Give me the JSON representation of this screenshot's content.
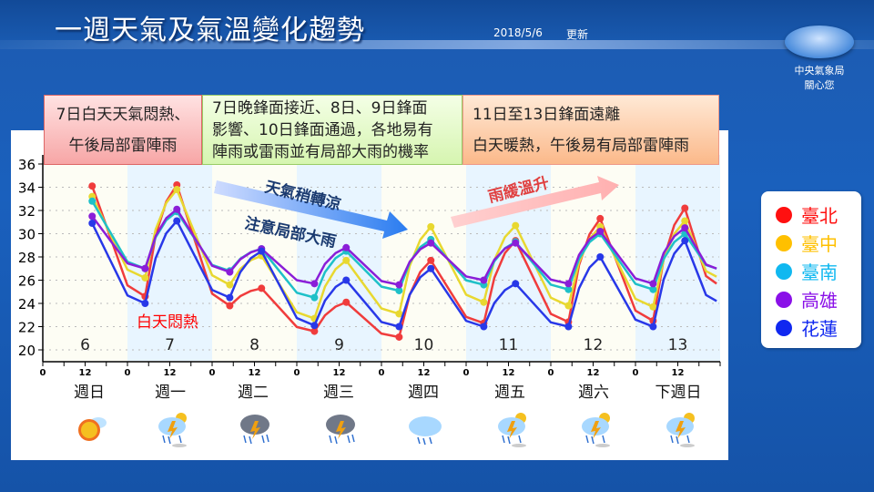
{
  "header": {
    "title": "一週天氣及氣溫變化趨勢",
    "date": "2018/5/6",
    "updated": "更新",
    "agency_line1": "中央氣象局",
    "agency_line2": "關心您"
  },
  "notes": [
    {
      "lines": [
        "7日白天天氣悶熱、",
        "午後局部雷陣雨"
      ]
    },
    {
      "lines": [
        "7日晚鋒面接近、8日、9日鋒面",
        "影響、10日鋒面通過，各地易有",
        "陣雨或雷雨並有局部大雨的機率"
      ]
    },
    {
      "lines": [
        "11日至13日鋒面遠離",
        "白天暖熱，午後易有局部雷陣雨"
      ]
    }
  ],
  "annotations": {
    "cool": "天氣稍轉涼",
    "heavy_rain": "注意局部大雨",
    "warm": "雨緩溫升",
    "hot": "白天悶熱"
  },
  "weekdays": [
    "週日",
    "週一",
    "週二",
    "週三",
    "週四",
    "週五",
    "週六",
    "下週日"
  ],
  "weather_icons": [
    "sunny-partly-cloudy",
    "thunderstorm-sun",
    "thunderstorm-dark",
    "thunderstorm-dark",
    "cloudy-rain",
    "thunderstorm-sun",
    "thunderstorm-sun",
    "thunderstorm-sun"
  ],
  "chart_data": {
    "type": "line",
    "ylabel": "",
    "xlabel": "",
    "ylim": [
      20,
      36
    ],
    "yticks": [
      20,
      22,
      24,
      26,
      28,
      30,
      32,
      34,
      36
    ],
    "xticks_hour_labels": [
      "0",
      "12",
      "0",
      "12",
      "0",
      "12",
      "0",
      "12",
      "0",
      "12",
      "0",
      "12",
      "0",
      "12",
      "0",
      "12"
    ],
    "day_labels": [
      "6",
      "7",
      "8",
      "9",
      "10",
      "11",
      "12",
      "13"
    ],
    "grid": "horizontal-dotted",
    "legend": "right",
    "x_hours": [
      14,
      29,
      38,
      53,
      62,
      77,
      86,
      101,
      110,
      125,
      134,
      149,
      158,
      173,
      182,
      191
    ],
    "series": [
      {
        "name": "臺北",
        "color": "#f03c3c",
        "values": [
          34.1,
          24.6,
          34.2,
          23.8,
          25.3,
          21.6,
          24.1,
          21.1,
          27.7,
          22.3,
          29.4,
          22.4,
          31.3,
          22.5,
          32.2,
          25.7
        ]
      },
      {
        "name": "臺中",
        "color": "#e8d830",
        "values": [
          33.2,
          26.2,
          33.8,
          25.6,
          28.1,
          22.7,
          27.7,
          23.1,
          30.6,
          24.1,
          30.7,
          23.8,
          30.6,
          23.7,
          31.1,
          26.3
        ]
      },
      {
        "name": "臺南",
        "color": "#1ec0c8",
        "values": [
          32.8,
          27.0,
          31.9,
          26.8,
          28.7,
          24.5,
          28.5,
          25.1,
          29.5,
          25.6,
          29.3,
          25.2,
          30.0,
          25.2,
          30.0,
          27.0
        ]
      },
      {
        "name": "高雄",
        "color": "#8a1ed8",
        "values": [
          31.5,
          27.0,
          32.1,
          26.7,
          28.7,
          25.7,
          28.8,
          25.6,
          29.2,
          26.0,
          29.2,
          25.7,
          30.2,
          25.7,
          30.5,
          27.0
        ]
      },
      {
        "name": "花蓮",
        "color": "#2838e8",
        "values": [
          30.9,
          24.0,
          31.1,
          24.5,
          28.5,
          22.1,
          26.0,
          22.0,
          27.0,
          22.0,
          25.7,
          22.0,
          28.0,
          22.0,
          29.4,
          24.2
        ]
      }
    ]
  },
  "legend_colors": {
    "臺北": "#ff1010",
    "臺中": "#ffc000",
    "臺南": "#10b8f0",
    "高雄": "#8a10e8",
    "花蓮": "#1028f0"
  }
}
